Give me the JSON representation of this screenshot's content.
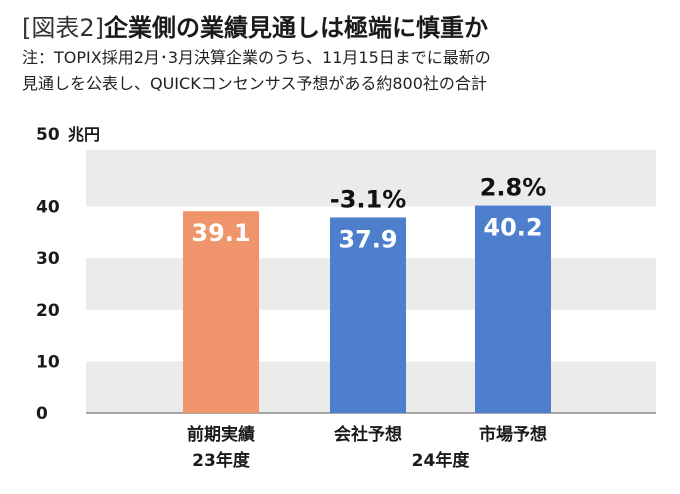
{
  "header": {
    "tag": "[図表2]",
    "title": "企業側の業績見通しは極端に慎重か",
    "note_line1": "注：TOPIX採用2月･3月決算企業のうち、11月15日までに最新の",
    "note_line2": "見通しを公表し、QUICKコンセンサス予想がある約800社の合計"
  },
  "chart_data": {
    "type": "bar",
    "title": "企業側の業績見通しは極端に慎重か",
    "ylabel": "兆円",
    "ylim": [
      0,
      50
    ],
    "yticks": [
      0,
      10,
      20,
      30,
      40,
      50
    ],
    "grid": "alternating horizontal bands",
    "categories": [
      "前期実績",
      "会社予想",
      "市場予想"
    ],
    "values": [
      39.1,
      37.9,
      40.2
    ],
    "value_labels": [
      "39.1",
      "37.9",
      "40.2"
    ],
    "change_labels": [
      "",
      "-3.1%",
      "2.8%"
    ],
    "bar_colors": [
      "#f0956b",
      "#4e7fcc",
      "#4e7fcc"
    ],
    "year_groups": [
      {
        "label": "23年度",
        "categories": [
          0
        ]
      },
      {
        "label": "24年度",
        "categories": [
          1,
          2
        ]
      }
    ]
  },
  "colors": {
    "band": "#ebebeb",
    "axis": "#555555"
  }
}
